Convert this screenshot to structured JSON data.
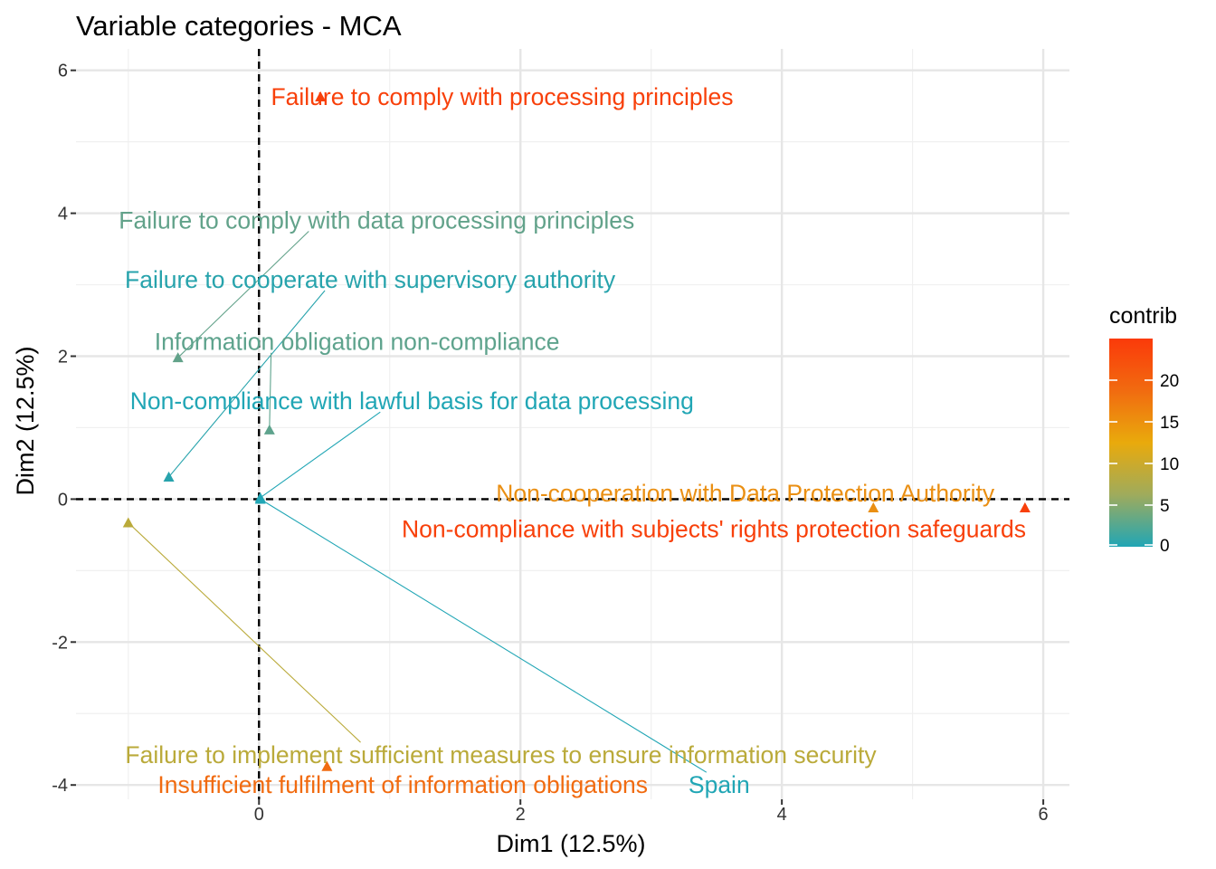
{
  "chart_data": {
    "type": "scatter",
    "title": "Variable categories - MCA",
    "xlabel": "Dim1 (12.5%)",
    "ylabel": "Dim2 (12.5%)",
    "xlim": [
      -1.4,
      6.2
    ],
    "ylim": [
      -4.2,
      6.3
    ],
    "x_ticks": [
      0,
      2,
      4,
      6
    ],
    "y_ticks": [
      -4,
      -2,
      0,
      2,
      4,
      6
    ],
    "x_tick_labels": [
      "0",
      "2",
      "4",
      "6"
    ],
    "y_tick_labels": [
      "-4",
      "-2",
      "0",
      "2",
      "4",
      "6"
    ],
    "reference_lines": {
      "x": 0,
      "y": 0,
      "style": "dashed"
    },
    "grid": true,
    "marker": "triangle",
    "points": [
      {
        "label": "Failure to comply with processing principles",
        "x": 0.47,
        "y": 5.63,
        "contrib": 24,
        "color": "#F8400A",
        "label_x": 1.86,
        "label_y": 5.63
      },
      {
        "label": "Failure to comply with data processing principles",
        "x": -0.62,
        "y": 1.98,
        "contrib": 3,
        "color": "#62A28A",
        "label_x": 0.9,
        "label_y": 3.9,
        "leader": true
      },
      {
        "label": "Failure to cooperate with supervisory authority",
        "x": -0.69,
        "y": 0.31,
        "contrib": 1,
        "color": "#27A3AC",
        "label_x": 0.85,
        "label_y": 3.07,
        "leader": true
      },
      {
        "label": "Information obligation non-compliance",
        "x": 0.08,
        "y": 0.97,
        "contrib": 4,
        "color": "#5EA38D",
        "label_x": 0.75,
        "label_y": 2.2,
        "leader": true
      },
      {
        "label": "Non-compliance with lawful basis for data processing",
        "x": 0.01,
        "y": 0.02,
        "contrib": 0,
        "color": "#21A6B5",
        "label_x": 1.17,
        "label_y": 1.37,
        "leader": true
      },
      {
        "label": "Non-cooperation with Data Protection Authority",
        "x": 4.7,
        "y": -0.12,
        "contrib": 16,
        "color": "#EA8F13",
        "label_x": 3.72,
        "label_y": 0.08
      },
      {
        "label": "Non-compliance with subjects' rights protection safeguards",
        "x": 5.86,
        "y": -0.12,
        "contrib": 24,
        "color": "#F8400A",
        "label_x": 3.48,
        "label_y": -0.42
      },
      {
        "label": "Failure to implement sufficient measures to ensure information security",
        "x": -1.0,
        "y": -0.33,
        "contrib": 8,
        "color": "#BAAA3A",
        "label_x": 1.85,
        "label_y": -3.58,
        "leader": true
      },
      {
        "label": "Insufficient fulfilment of information obligations",
        "x": 0.52,
        "y": -3.74,
        "contrib": 20,
        "color": "#F16B10",
        "label_x": 1.1,
        "label_y": -4.0
      },
      {
        "label": "Spain",
        "x": 0.01,
        "y": 0.0,
        "contrib": 0,
        "color": "#21A6B5",
        "label_x": 3.52,
        "label_y": -4.0,
        "leader": true
      }
    ],
    "legend": {
      "title": "contrib",
      "position": "right",
      "range": [
        0,
        25
      ],
      "ticks": [
        0,
        5,
        10,
        15,
        20
      ],
      "tick_labels": [
        "0",
        "5",
        "10",
        "15",
        "20"
      ],
      "colors": [
        "#21A6B5",
        "#9FAB5C",
        "#E9AA0C",
        "#F16B10",
        "#FB3A0A"
      ]
    }
  }
}
